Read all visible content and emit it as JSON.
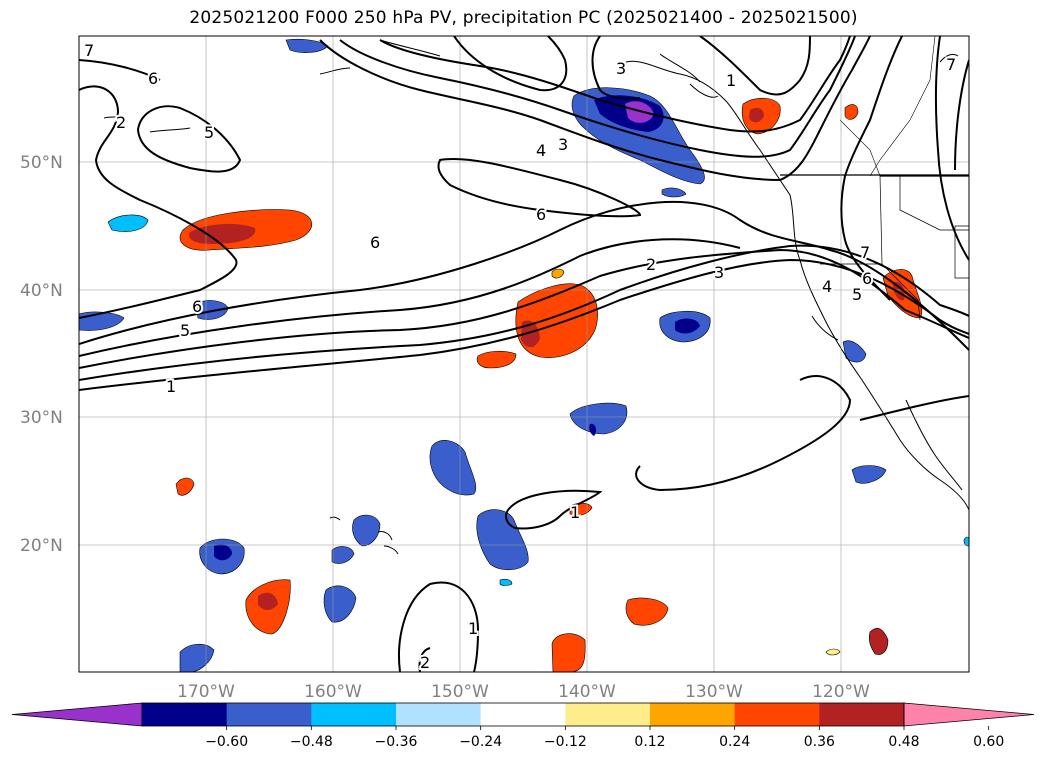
{
  "title": "2025021200 F000 250 hPa PV, precipitation PC (2025021400 - 2025021500)",
  "lat_labels": [
    "50°N",
    "40°N",
    "30°N",
    "20°N"
  ],
  "lon_labels": [
    "170°W",
    "160°W",
    "150°W",
    "140°W",
    "130°W",
    "120°W"
  ],
  "contour_labels": [
    "1",
    "2",
    "3",
    "4",
    "5",
    "6",
    "7"
  ],
  "colorbar": {
    "ticks": [
      "−0.60",
      "−0.48",
      "−0.36",
      "−0.24",
      "−0.12",
      "0.12",
      "0.24",
      "0.36",
      "0.48",
      "0.60"
    ],
    "colors": [
      "#9932CC",
      "#00008B",
      "#3A5FCD",
      "#00BFFF",
      "#B0E2FF",
      "#FFFFFF",
      "#FFEC8B",
      "#FFA500",
      "#FF4500",
      "#B22222",
      "#FF82AB"
    ]
  }
}
